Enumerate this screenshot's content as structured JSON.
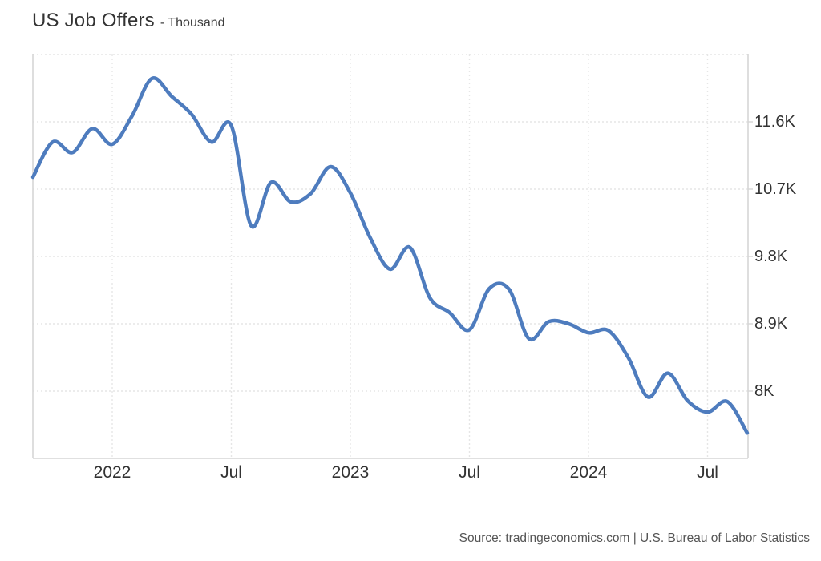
{
  "header": {
    "title": "US Job Offers",
    "subtitle": "- Thousand"
  },
  "footer": {
    "source": "Source: tradingeconomics.com | U.S. Bureau of Labor Statistics"
  },
  "colors": {
    "line": "#4e7cbe",
    "grid": "#e6e6e6",
    "axis_border": "#d6d6d6",
    "title_text": "#333333",
    "axis_text": "#333333",
    "source_text": "#555555",
    "background": "#ffffff"
  },
  "chart_data": {
    "type": "line",
    "title": "US Job Offers",
    "ylabel": "Thousand",
    "legend": "none",
    "grid": "dotted",
    "smooth": true,
    "x": [
      "2021-09",
      "2021-10",
      "2021-11",
      "2021-12",
      "2022-01",
      "2022-02",
      "2022-03",
      "2022-04",
      "2022-05",
      "2022-06",
      "2022-07",
      "2022-08",
      "2022-09",
      "2022-10",
      "2022-11",
      "2022-12",
      "2023-01",
      "2023-02",
      "2023-03",
      "2023-04",
      "2023-05",
      "2023-06",
      "2023-07",
      "2023-08",
      "2023-09",
      "2023-10",
      "2023-11",
      "2023-12",
      "2024-01",
      "2024-02",
      "2024-03",
      "2024-04",
      "2024-05",
      "2024-06",
      "2024-07",
      "2024-08",
      "2024-09"
    ],
    "series": [
      {
        "name": "US Job Offers",
        "values": [
          10860,
          11330,
          11190,
          11510,
          11300,
          11680,
          12180,
          11940,
          11700,
          11330,
          11550,
          10210,
          10790,
          10530,
          10640,
          11000,
          10650,
          10050,
          9630,
          9920,
          9250,
          9050,
          8820,
          9370,
          9360,
          8700,
          8930,
          8900,
          8780,
          8810,
          8450,
          7920,
          8240,
          7870,
          7720,
          7860,
          7440
        ]
      }
    ],
    "ylim": [
      7100,
      12500
    ],
    "y_gridlines": [
      12500,
      11600,
      10700,
      9800,
      8900,
      8000
    ],
    "y_ticks": [
      {
        "value": 11600,
        "label": "11.6K"
      },
      {
        "value": 10700,
        "label": "10.7K"
      },
      {
        "value": 9800,
        "label": "9.8K"
      },
      {
        "value": 8900,
        "label": "8.9K"
      },
      {
        "value": 8000,
        "label": "8K"
      }
    ],
    "x_ticks": [
      {
        "index": 4,
        "label": "2022"
      },
      {
        "index": 10,
        "label": "Jul"
      },
      {
        "index": 16,
        "label": "2023"
      },
      {
        "index": 22,
        "label": "Jul"
      },
      {
        "index": 28,
        "label": "2024"
      },
      {
        "index": 34,
        "label": "Jul"
      }
    ]
  }
}
